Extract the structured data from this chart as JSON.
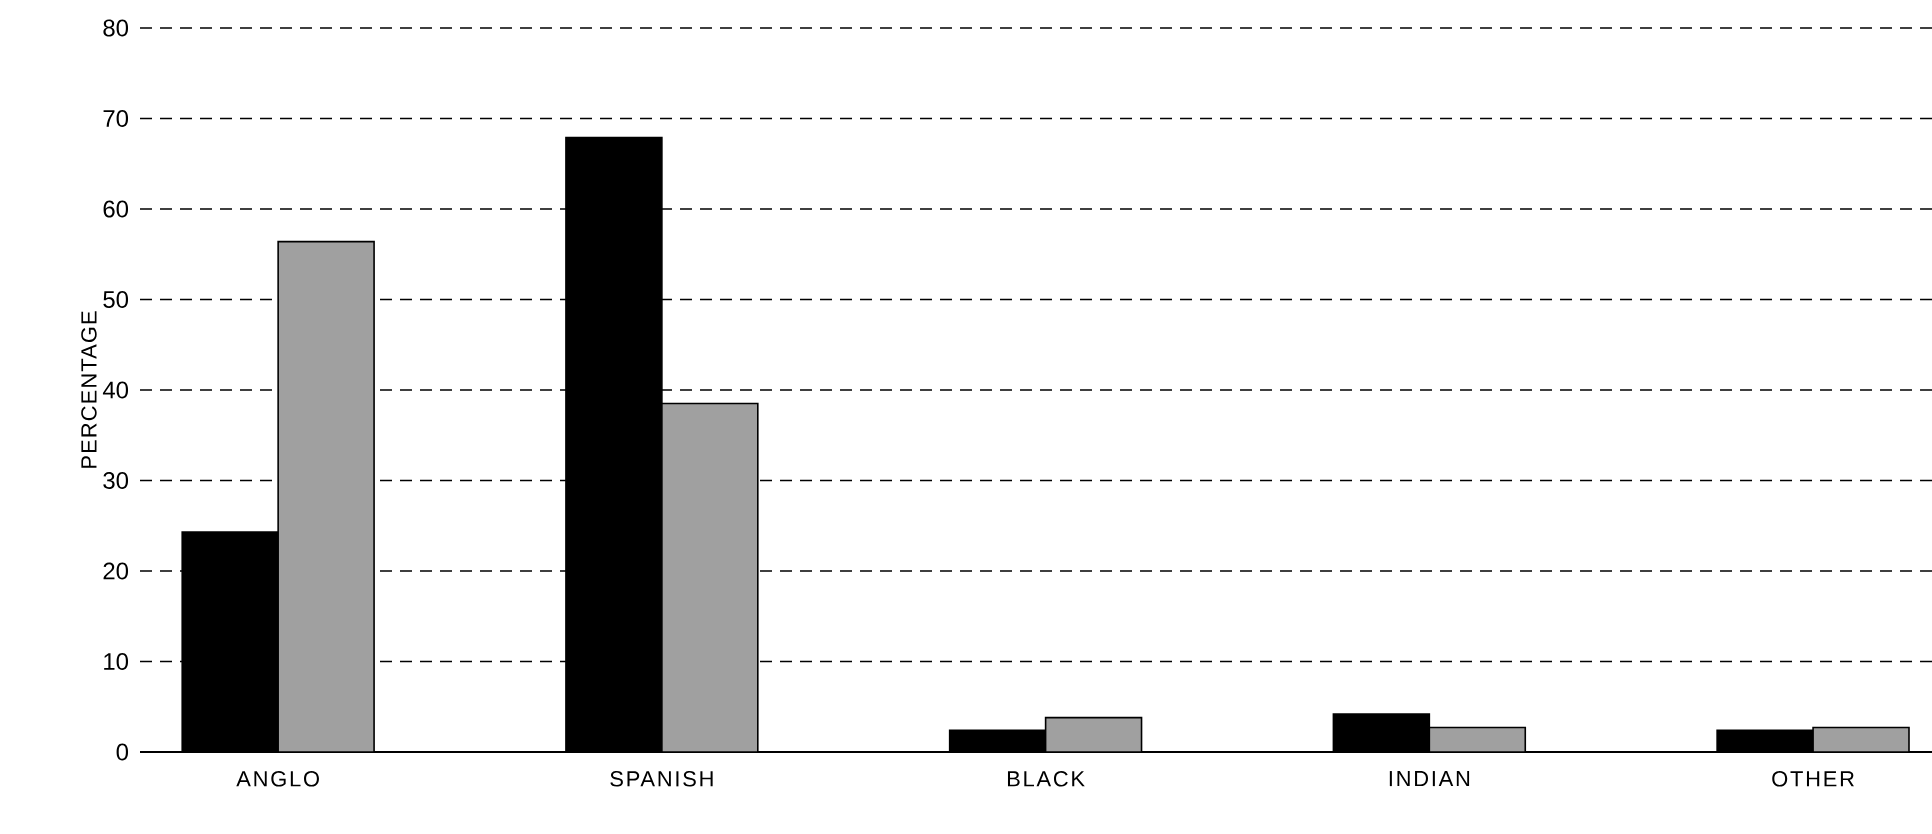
{
  "chart_data": {
    "type": "bar",
    "ylabel": "PERCENTAGE",
    "categories": [
      "ANGLO",
      "SPANISH",
      "BLACK",
      "INDIAN",
      "OTHER"
    ],
    "series": [
      {
        "color": "#000000",
        "values": [
          24.3,
          67.9,
          2.4,
          4.2,
          2.4
        ]
      },
      {
        "color": "#a0a0a0",
        "values": [
          56.4,
          38.5,
          3.8,
          2.7,
          2.7
        ]
      }
    ],
    "ylim": [
      0,
      80
    ],
    "yticks": [
      0,
      10,
      20,
      30,
      40,
      50,
      60,
      70,
      80
    ],
    "grid": "y"
  }
}
